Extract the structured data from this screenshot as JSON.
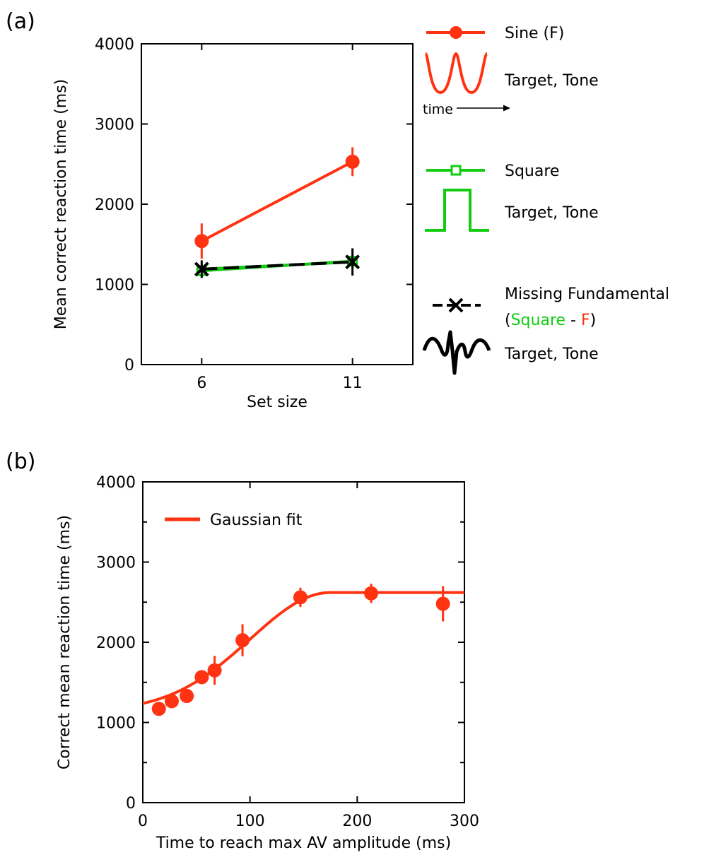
{
  "panels": {
    "a": {
      "label": "(a)",
      "legend": {
        "sine_name": "Sine (F)",
        "sine_sub": "Target, Tone",
        "time_label": "time",
        "square_name": "Square",
        "square_sub": "Target, Tone",
        "mf_name": "Missing Fundamental",
        "mf_paren_open": "(",
        "mf_square": "Square",
        "mf_minus": " - ",
        "mf_f": "F",
        "mf_paren_close": ")",
        "mf_sub": "Target, Tone"
      }
    },
    "b": {
      "label": "(b)",
      "legend": {
        "fit_name": "Gaussian fit"
      }
    }
  },
  "colors": {
    "sine": "#ff3311",
    "square": "#11cc11",
    "missing_fundamental": "#000000",
    "fit": "#ff3311",
    "axis": "#000000"
  },
  "chart_data": [
    {
      "type": "line",
      "title": "",
      "xlabel": "Set size",
      "ylabel": "Mean correct reaction time (ms)",
      "x": [
        6,
        11
      ],
      "xlim": [
        4,
        13
      ],
      "ylim": [
        0,
        4000
      ],
      "xticks": [
        6,
        11
      ],
      "yticks": [
        0,
        1000,
        2000,
        3000,
        4000
      ],
      "series": [
        {
          "name": "Sine (F)",
          "color": "#ff3311",
          "marker": "circle",
          "values": [
            1540,
            2530
          ],
          "errors": [
            220,
            180
          ]
        },
        {
          "name": "Square",
          "color": "#11cc11",
          "marker": "square",
          "values": [
            1170,
            1290
          ],
          "errors": [
            80,
            80
          ]
        },
        {
          "name": "Missing Fundamental",
          "color": "#000000",
          "marker": "x",
          "dashed": true,
          "values": [
            1190,
            1280
          ],
          "errors": [
            110,
            170
          ]
        }
      ]
    },
    {
      "type": "scatter",
      "title": "",
      "xlabel": "Time to reach max AV amplitude (ms)",
      "ylabel": "Correct mean reaction time (ms)",
      "xlim": [
        0,
        300
      ],
      "ylim": [
        0,
        4000
      ],
      "xticks": [
        0,
        100,
        200,
        300
      ],
      "yticks": [
        0,
        1000,
        2000,
        3000,
        4000
      ],
      "points": [
        {
          "x": 15,
          "y": 1170,
          "err": 50
        },
        {
          "x": 27,
          "y": 1265,
          "err": 50
        },
        {
          "x": 41,
          "y": 1330,
          "err": 50
        },
        {
          "x": 55,
          "y": 1565,
          "err": 70
        },
        {
          "x": 67,
          "y": 1650,
          "err": 180
        },
        {
          "x": 93,
          "y": 2025,
          "err": 200
        },
        {
          "x": 147,
          "y": 2560,
          "err": 120
        },
        {
          "x": 213,
          "y": 2610,
          "err": 120
        },
        {
          "x": 280,
          "y": 2480,
          "err": 220
        }
      ],
      "fit": {
        "name": "Gaussian fit",
        "baseline": 1140,
        "plateau": 2620,
        "center_x": 175,
        "sigma": 75,
        "x_range": [
          0,
          300
        ]
      }
    }
  ]
}
